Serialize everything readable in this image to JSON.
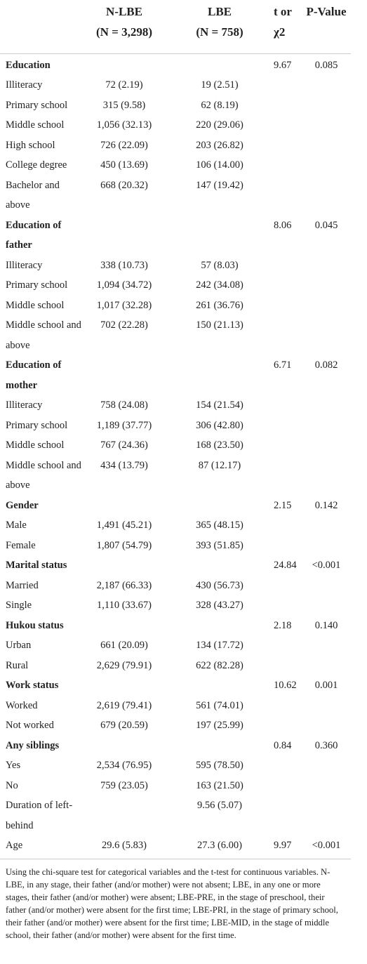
{
  "header": {
    "columns": [
      {
        "lines": [
          "N-LBE",
          "(N = 3,298)"
        ]
      },
      {
        "lines": [
          "LBE",
          "(N = 758)"
        ]
      },
      {
        "lines": [
          "t or",
          "χ2"
        ]
      },
      {
        "lines": [
          "P-Value"
        ]
      }
    ]
  },
  "table": {
    "rows": [
      {
        "label": "Education",
        "heading": true,
        "cells": [
          null,
          null,
          "9.67",
          "0.085"
        ]
      },
      {
        "label": "Illiteracy",
        "cells": [
          "72 (2.19)",
          "19 (2.51)",
          null,
          null
        ]
      },
      {
        "label": "Primary school",
        "cells": [
          "315 (9.58)",
          "62 (8.19)",
          null,
          null
        ]
      },
      {
        "label": "Middle school",
        "cells": [
          "1,056 (32.13)",
          "220 (29.06)",
          null,
          null
        ]
      },
      {
        "label": "High school",
        "cells": [
          "726 (22.09)",
          "203 (26.82)",
          null,
          null
        ]
      },
      {
        "label": "College degree",
        "cells": [
          "450 (13.69)",
          "106 (14.00)",
          null,
          null
        ]
      },
      {
        "label": "Bachelor and above",
        "cells": [
          "668 (20.32)",
          "147 (19.42)",
          null,
          null
        ]
      },
      {
        "label": "Education of father",
        "heading": true,
        "cells": [
          null,
          null,
          "8.06",
          "0.045"
        ]
      },
      {
        "label": "Illiteracy",
        "cells": [
          "338 (10.73)",
          "57 (8.03)",
          null,
          null
        ]
      },
      {
        "label": "Primary school",
        "cells": [
          "1,094 (34.72)",
          "242 (34.08)",
          null,
          null
        ]
      },
      {
        "label": "Middle school",
        "cells": [
          "1,017 (32.28)",
          "261 (36.76)",
          null,
          null
        ]
      },
      {
        "label": "Middle school and above",
        "cells": [
          "702 (22.28)",
          "150 (21.13)",
          null,
          null
        ]
      },
      {
        "label": "Education of mother",
        "heading": true,
        "cells": [
          null,
          null,
          "6.71",
          "0.082"
        ]
      },
      {
        "label": "Illiteracy",
        "cells": [
          "758 (24.08)",
          "154 (21.54)",
          null,
          null
        ]
      },
      {
        "label": "Primary school",
        "cells": [
          "1,189 (37.77)",
          "306 (42.80)",
          null,
          null
        ]
      },
      {
        "label": "Middle school",
        "cells": [
          "767 (24.36)",
          "168 (23.50)",
          null,
          null
        ]
      },
      {
        "label": "Middle school and above",
        "cells": [
          "434 (13.79)",
          "87 (12.17)",
          null,
          null
        ]
      },
      {
        "label": "Gender",
        "heading": true,
        "cells": [
          null,
          null,
          "2.15",
          "0.142"
        ]
      },
      {
        "label": "Male",
        "cells": [
          "1,491 (45.21)",
          "365 (48.15)",
          null,
          null
        ]
      },
      {
        "label": "Female",
        "cells": [
          "1,807 (54.79)",
          "393 (51.85)",
          null,
          null
        ]
      },
      {
        "label": "Marital status",
        "heading": true,
        "cells": [
          null,
          null,
          "24.84",
          "<0.001"
        ]
      },
      {
        "label": "Married",
        "cells": [
          "2,187 (66.33)",
          "430 (56.73)",
          null,
          null
        ]
      },
      {
        "label": "Single",
        "cells": [
          "1,110 (33.67)",
          "328 (43.27)",
          null,
          null
        ]
      },
      {
        "label": "Hukou status",
        "heading": true,
        "cells": [
          null,
          null,
          "2.18",
          "0.140"
        ]
      },
      {
        "label": "Urban",
        "cells": [
          "661 (20.09)",
          "134 (17.72)",
          null,
          null
        ]
      },
      {
        "label": "Rural",
        "cells": [
          "2,629 (79.91)",
          "622 (82.28)",
          null,
          null
        ]
      },
      {
        "label": "Work status",
        "heading": true,
        "cells": [
          null,
          null,
          "10.62",
          "0.001"
        ]
      },
      {
        "label": "Worked",
        "cells": [
          "2,619 (79.41)",
          "561 (74.01)",
          null,
          null
        ]
      },
      {
        "label": "Not worked",
        "cells": [
          "679 (20.59)",
          "197 (25.99)",
          null,
          null
        ]
      },
      {
        "label": "Any siblings",
        "heading": true,
        "cells": [
          null,
          null,
          "0.84",
          "0.360"
        ]
      },
      {
        "label": "Yes",
        "cells": [
          "2,534 (76.95)",
          "595 (78.50)",
          null,
          null
        ]
      },
      {
        "label": "No",
        "cells": [
          "759 (23.05)",
          "163 (21.50)",
          null,
          null
        ]
      },
      {
        "label": "Duration of left-behind",
        "cells": [
          null,
          "9.56 (5.07)",
          null,
          null
        ]
      },
      {
        "label": "Age",
        "cells": [
          "29.6 (5.83)",
          "27.3 (6.00)",
          "9.97",
          "<0.001"
        ]
      }
    ]
  },
  "footnote": "Using the chi-square test for categorical variables and the t-test for continuous variables. N-LBE, in any stage, their father (and/or mother) were not absent; LBE, in any one or more stages, their father (and/or mother) were absent; LBE-PRE, in the stage of preschool, their father (and/or mother) were absent for the first time; LBE-PRI, in the stage of primary school, their father (and/or mother) were absent for the first time; LBE-MID, in the stage of middle school, their father (and/or mother) were absent for the first time."
}
